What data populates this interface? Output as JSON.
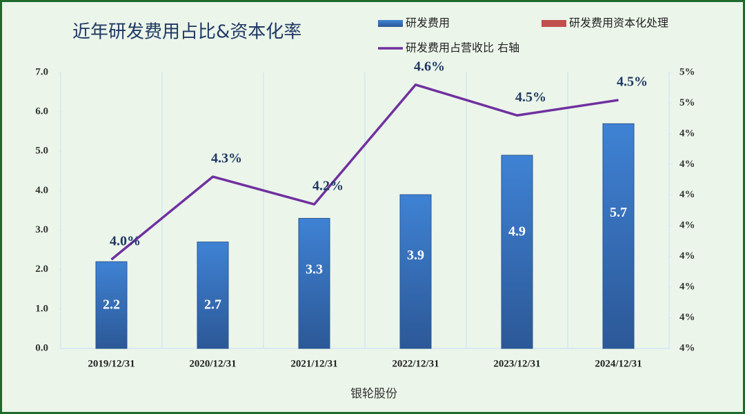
{
  "chart_data": {
    "type": "bar",
    "title": "近年研发费用占比&资本化率",
    "x_label": "银轮股份",
    "categories": [
      "2019/12/31",
      "2020/12/31",
      "2021/12/31",
      "2022/12/31",
      "2023/12/31",
      "2024/12/31"
    ],
    "series": [
      {
        "name": "研发费用",
        "type": "bar",
        "color": "#3a78c9",
        "values": [
          2.2,
          2.7,
          3.3,
          3.9,
          4.9,
          5.7
        ]
      },
      {
        "name": "研发费用资本化处理",
        "type": "bar",
        "color": "#c0504d",
        "values": [
          0,
          0,
          0,
          0,
          0,
          0
        ]
      },
      {
        "name": "研发费用占营收比 右轴",
        "type": "line",
        "axis": "y2",
        "color": "#7030a0",
        "values": [
          3.99,
          4.26,
          4.17,
          4.56,
          4.46,
          4.51
        ],
        "value_labels": [
          "4.0%",
          "4.3%",
          "4.2%",
          "4.6%",
          "4.5%",
          "4.5%"
        ]
      }
    ],
    "ylim": [
      0,
      7
    ],
    "yticks": [
      {
        "value": 0,
        "label": "0.0"
      },
      {
        "value": 1,
        "label": "1.0"
      },
      {
        "value": 2,
        "label": "2.0"
      },
      {
        "value": 3,
        "label": "3.0"
      },
      {
        "value": 4,
        "label": "4.0"
      },
      {
        "value": 5,
        "label": "5.0"
      },
      {
        "value": 6,
        "label": "6.0"
      },
      {
        "value": 7,
        "label": "7.0"
      }
    ],
    "y2lim": [
      3.7,
      4.6
    ],
    "y2ticks": [
      {
        "value": 3.7,
        "label": "4%"
      },
      {
        "value": 3.8,
        "label": "4%"
      },
      {
        "value": 3.9,
        "label": "4%"
      },
      {
        "value": 4.0,
        "label": "4%"
      },
      {
        "value": 4.1,
        "label": "4%"
      },
      {
        "value": 4.2,
        "label": "4%"
      },
      {
        "value": 4.3,
        "label": "4%"
      },
      {
        "value": 4.4,
        "label": "4%"
      },
      {
        "value": 4.5,
        "label": "5%"
      },
      {
        "value": 4.6,
        "label": "5%"
      }
    ]
  }
}
